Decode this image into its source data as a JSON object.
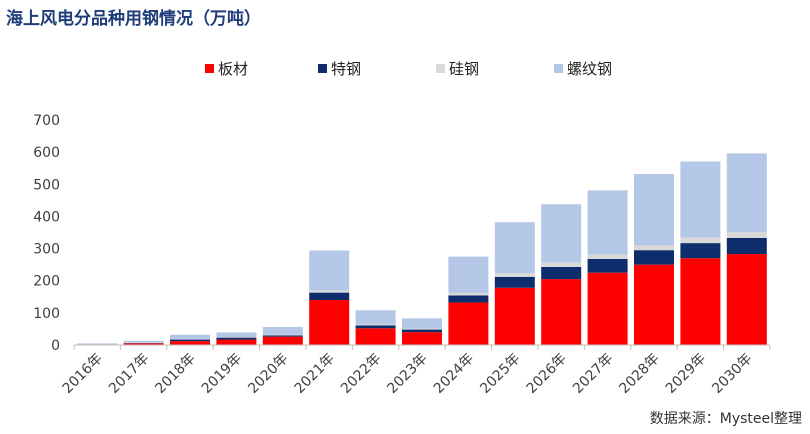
{
  "title": "海上风电分品种用钢情况（万吨）",
  "source": "数据来源：Mysteel整理",
  "chart_data": {
    "type": "bar",
    "stacked": true,
    "title": "海上风电分品种用钢情况（万吨）",
    "xlabel": "",
    "ylabel": "",
    "ylim": [
      0,
      700
    ],
    "yticks": [
      0,
      100,
      200,
      300,
      400,
      500,
      600,
      700
    ],
    "legend_position": "top",
    "grid": false,
    "categories": [
      "2016年",
      "2017年",
      "2018年",
      "2019年",
      "2020年",
      "2021年",
      "2022年",
      "2023年",
      "2024年",
      "2025年",
      "2026年",
      "2027年",
      "2028年",
      "2029年",
      "2030年"
    ],
    "series": [
      {
        "name": "板材",
        "color": "#ff0000",
        "values": [
          2,
          5,
          12,
          17,
          26,
          140,
          52,
          40,
          132,
          178,
          205,
          225,
          250,
          270,
          283
        ]
      },
      {
        "name": "特钢",
        "color": "#0d2d6c",
        "values": [
          0,
          1,
          5,
          6,
          4,
          23,
          9,
          8,
          22,
          34,
          38,
          43,
          45,
          47,
          50
        ]
      },
      {
        "name": "硅钢",
        "color": "#d9d9d9",
        "values": [
          0,
          1,
          2,
          2,
          2,
          7,
          3,
          3,
          8,
          12,
          13,
          13,
          15,
          17,
          18
        ]
      },
      {
        "name": "螺纹钢",
        "color": "#b4c7e7",
        "values": [
          3,
          6,
          13,
          14,
          24,
          124,
          44,
          32,
          113,
          158,
          182,
          200,
          222,
          237,
          245
        ]
      }
    ]
  }
}
